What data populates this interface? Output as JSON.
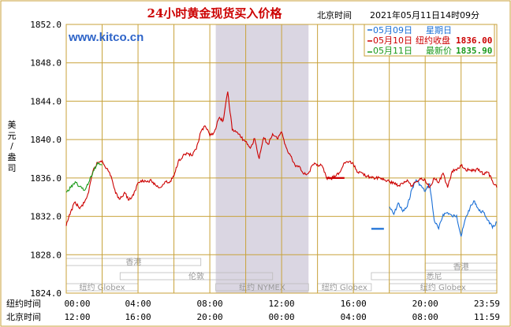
{
  "header": {
    "title": "24小时黄金现货买入价格",
    "timezone_label": "北京时间",
    "timestamp": "2021年05月11日14时09分",
    "website": "www.kitco.cn"
  },
  "legend": {
    "items": [
      {
        "date": "05月09日",
        "text": "星期日",
        "value": "",
        "color": "#1a6fd6"
      },
      {
        "date": "05月10日",
        "text": "纽约收盘",
        "value": "1836.00",
        "color": "#cc0000"
      },
      {
        "date": "05月11日",
        "text": "最新价",
        "value": "1835.90",
        "color": "#1a9a1a"
      }
    ]
  },
  "colors": {
    "grid": "#c8a23a",
    "sunday": "#1a6fd6",
    "prev_day": "#cc0000",
    "today": "#1a9a1a",
    "shade": "#dad6e2",
    "market_text": "#999999"
  },
  "axes": {
    "y_label": [
      "美",
      "元",
      "/",
      "盎",
      "司"
    ],
    "row_labels": [
      "纽约时间",
      "北京时间"
    ],
    "ny_ticks": [
      "00:00",
      "04:00",
      "08:00",
      "12:00",
      "16:00",
      "20:00",
      "23:59"
    ],
    "bj_ticks": [
      "12:00",
      "16:00",
      "20:00",
      "00:00",
      "04:00",
      "08:00",
      "11:59"
    ],
    "y_ticks": [
      "1824.0",
      "1828.0",
      "1832.0",
      "1836.0",
      "1840.0",
      "1844.0",
      "1848.0",
      "1852.0"
    ]
  },
  "markets": [
    {
      "name": "香港",
      "start": 0.0,
      "end": 7.5
    },
    {
      "name": "伦敦",
      "start": 3.0,
      "end": 11.5
    },
    {
      "name": "纽约 Globex",
      "start": 0.0,
      "end": 4.0
    },
    {
      "name": "纽约 NYMEX",
      "start": 8.33,
      "end": 13.5
    },
    {
      "name": "纽约 Globex",
      "start": 14.0,
      "end": 17.0
    },
    {
      "name": "香港",
      "start": 20.0,
      "end": 23.99
    },
    {
      "name": "悉尼",
      "start": 17.0,
      "end": 23.99
    },
    {
      "name": "纽约 Globex",
      "start": 18.0,
      "end": 23.99
    }
  ],
  "chart_data": {
    "type": "line",
    "ylabel": "美元/盎司",
    "xlabel": "纽约时间 / 北京时间",
    "x_unit": "纽约时间 (小时)",
    "ylim": [
      1824,
      1852
    ],
    "xlim": [
      0,
      23.99
    ],
    "shaded_range": [
      8.33,
      13.5
    ],
    "series": [
      {
        "name": "05月09日 星期日",
        "x": [
          18.0,
          18.25,
          18.5,
          18.75,
          19.0,
          19.25,
          19.5,
          19.75,
          20.0,
          20.25,
          20.5,
          20.75,
          21.0,
          21.25,
          21.5,
          21.75,
          22.0,
          22.25,
          22.5,
          22.75,
          23.0,
          23.25,
          23.5,
          23.75,
          23.99
        ],
        "y": [
          1833.0,
          1832.2,
          1833.4,
          1832.5,
          1833.0,
          1834.8,
          1835.8,
          1835.2,
          1834.6,
          1835.4,
          1831.6,
          1830.7,
          1832.2,
          1832.4,
          1832.0,
          1832.1,
          1829.9,
          1831.8,
          1832.9,
          1833.6,
          1832.6,
          1832.4,
          1831.6,
          1830.8,
          1831.4
        ]
      },
      {
        "name": "05月10日 纽约收盘",
        "x": [
          0.0,
          0.25,
          0.5,
          0.75,
          1.0,
          1.25,
          1.5,
          1.75,
          2.0,
          2.25,
          2.5,
          2.75,
          3.0,
          3.25,
          3.5,
          3.75,
          4.0,
          4.25,
          4.5,
          4.75,
          5.0,
          5.25,
          5.5,
          5.75,
          6.0,
          6.25,
          6.5,
          6.75,
          7.0,
          7.25,
          7.5,
          7.75,
          8.0,
          8.25,
          8.5,
          8.75,
          9.0,
          9.25,
          9.5,
          9.75,
          10.0,
          10.25,
          10.5,
          10.75,
          11.0,
          11.25,
          11.5,
          11.75,
          12.0,
          12.25,
          12.5,
          12.75,
          13.0,
          13.25,
          13.5,
          13.75,
          14.0,
          14.25,
          14.5,
          14.75,
          15.0,
          15.25,
          15.5,
          15.75,
          16.0,
          16.25,
          16.5,
          16.75,
          17.0,
          17.25,
          17.5,
          17.75,
          18.0,
          18.25,
          18.5,
          18.75,
          19.0,
          19.25,
          19.5,
          19.75,
          20.0,
          20.25,
          20.5,
          20.75,
          21.0,
          21.25,
          21.5,
          21.75,
          22.0,
          22.25,
          22.5,
          22.75,
          23.0,
          23.25,
          23.5,
          23.75,
          23.99
        ],
        "y": [
          1831.0,
          1832.5,
          1833.5,
          1832.8,
          1833.4,
          1834.5,
          1836.8,
          1837.6,
          1837.8,
          1837.0,
          1836.2,
          1834.4,
          1833.8,
          1834.5,
          1833.7,
          1834.2,
          1835.5,
          1835.8,
          1835.6,
          1835.7,
          1835.2,
          1835.0,
          1835.6,
          1835.5,
          1836.2,
          1837.8,
          1838.3,
          1838.6,
          1838.3,
          1839.0,
          1840.8,
          1841.4,
          1840.4,
          1840.8,
          1842.2,
          1842.0,
          1845.0,
          1841.0,
          1840.8,
          1840.2,
          1839.8,
          1839.1,
          1840.1,
          1838.0,
          1840.2,
          1839.5,
          1840.6,
          1840.1,
          1840.8,
          1839.2,
          1838.3,
          1837.3,
          1837.2,
          1836.4,
          1836.5,
          1837.4,
          1837.4,
          1837.3,
          1836.0,
          1835.9,
          1836.2,
          1836.6,
          1837.6,
          1837.7,
          1837.4,
          1836.6,
          1836.5,
          1836.2,
          1836.0,
          1836.0,
          1836.0,
          1835.8,
          1835.6,
          1835.5,
          1835.2,
          1835.4,
          1835.8,
          1835.2,
          1835.6,
          1835.9,
          1835.8,
          1835.0,
          1836.0,
          1835.5,
          1836.5,
          1835.0,
          1836.7,
          1836.8,
          1837.3,
          1836.9,
          1836.8,
          1836.8,
          1836.9,
          1836.4,
          1836.6,
          1835.7,
          1835.0
        ]
      },
      {
        "name": "05月11日 最新价",
        "x": [
          0.0,
          0.25,
          0.5,
          0.75,
          1.0,
          1.25,
          1.5,
          1.75,
          2.0
        ],
        "y": [
          1834.5,
          1835.0,
          1835.6,
          1835.1,
          1834.7,
          1835.5,
          1836.7,
          1837.6,
          1837.4
        ]
      }
    ],
    "reference_levels": [
      {
        "series": "05月10日 纽约收盘",
        "value": 1836.0,
        "x": [
          14.5,
          15.5
        ]
      },
      {
        "series": "05月09日 星期日",
        "value": 1830.7,
        "x": [
          17.0,
          17.7
        ]
      }
    ]
  }
}
